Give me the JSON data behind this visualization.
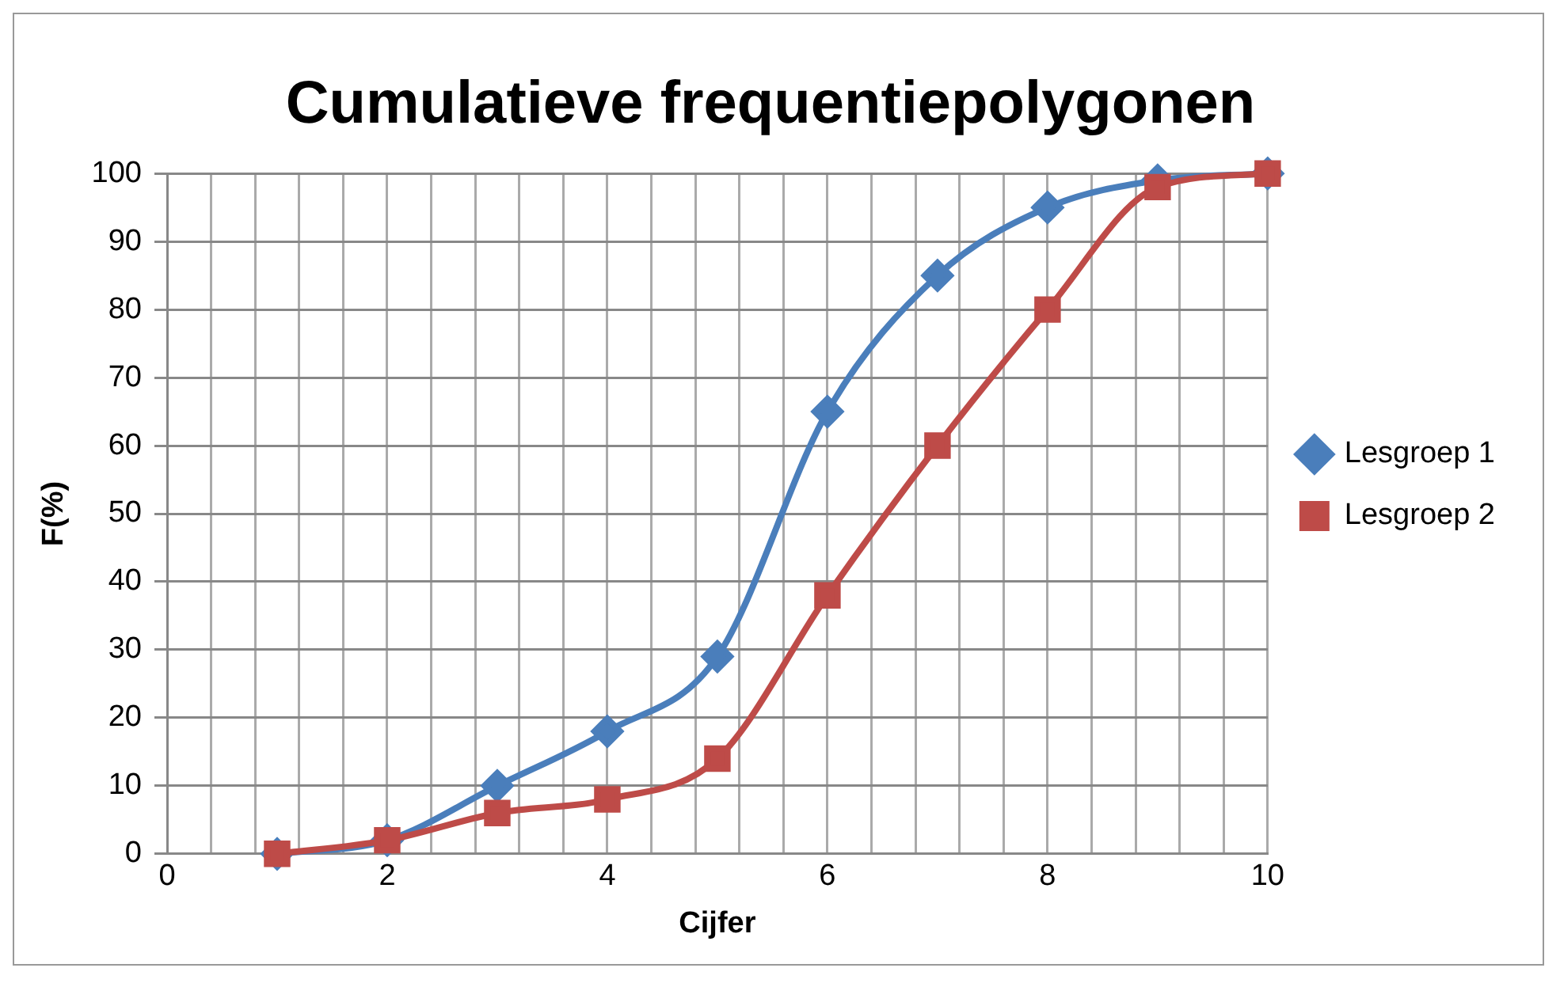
{
  "chart_data": {
    "type": "line",
    "title": "Cumulatieve frequentiepolygonen",
    "xlabel": "Cijfer",
    "ylabel": "F(%)",
    "x": [
      1,
      2,
      3,
      4,
      5,
      6,
      7,
      8,
      9,
      10
    ],
    "series": [
      {
        "name": "Lesgroep 1",
        "color": "#4a7ebb",
        "marker": "diamond",
        "values": [
          0,
          2,
          10,
          18,
          29,
          65,
          85,
          95,
          99,
          100
        ]
      },
      {
        "name": "Lesgroep 2",
        "color": "#be4b48",
        "marker": "square",
        "values": [
          0,
          2,
          6,
          8,
          14,
          38,
          60,
          80,
          98,
          100
        ]
      }
    ],
    "xlim": [
      0,
      10
    ],
    "xticks": [
      0,
      {
        "value": 0.4,
        "label": null
      },
      {
        "value": 0.8,
        "label": null
      },
      {
        "value": 1.2,
        "label": null
      },
      {
        "value": 1.6,
        "label": null
      },
      2,
      {
        "value": 2.4,
        "label": null
      },
      {
        "value": 2.8,
        "label": null
      },
      {
        "value": 3.2,
        "label": null
      },
      {
        "value": 3.6,
        "label": null
      },
      4,
      {
        "value": 4.4,
        "label": null
      },
      {
        "value": 4.8,
        "label": null
      },
      {
        "value": 5.2,
        "label": null
      },
      {
        "value": 5.6,
        "label": null
      },
      6,
      {
        "value": 6.4,
        "label": null
      },
      {
        "value": 6.8,
        "label": null
      },
      {
        "value": 7.2,
        "label": null
      },
      {
        "value": 7.6,
        "label": null
      },
      8,
      {
        "value": 8.4,
        "label": null
      },
      {
        "value": 8.8,
        "label": null
      },
      {
        "value": 9.2,
        "label": null
      },
      {
        "value": 9.6,
        "label": null
      },
      10
    ],
    "ylim": [
      0,
      100
    ],
    "yticks": [
      0,
      10,
      20,
      30,
      40,
      50,
      60,
      70,
      80,
      90,
      100
    ],
    "grid": true,
    "legend": "right",
    "line_style": "solid"
  }
}
